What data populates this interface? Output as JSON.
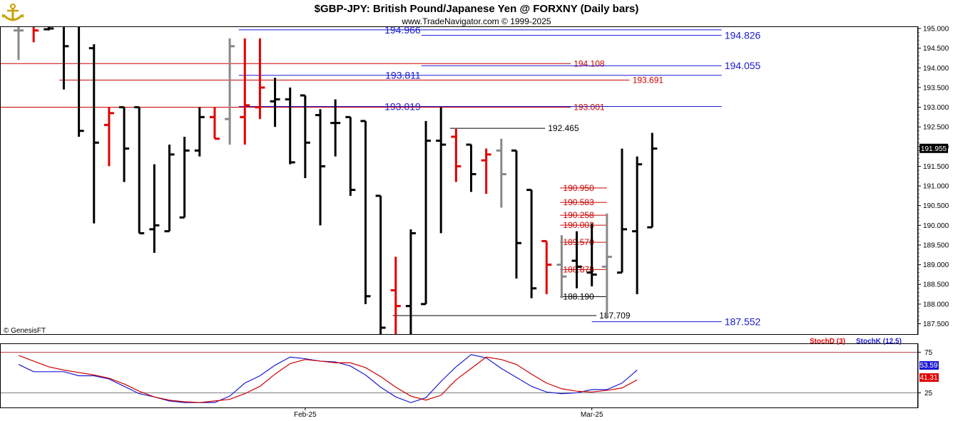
{
  "header": {
    "title": "$GBP-JPY:  British Pound/Japanese Yen @ FORXNY  (Daily bars)",
    "subtitle": "www.TradeNavigator.com © 1999-2025"
  },
  "watermark": "© GenesisFT",
  "colors": {
    "up_bar": "#000000",
    "down_bar": "#e00000",
    "neutral_bar": "#888888",
    "blue_level": "#1a1ad0",
    "red_level": "#cc0000",
    "black_level": "#000000",
    "stoch_d": "#e00000",
    "stoch_k": "#1a1ad0",
    "price_badge": "#000000"
  },
  "chart_data": [
    {
      "type": "ohlc",
      "name": "price",
      "y_ticks": [
        "187.500",
        "188.000",
        "188.500",
        "189.000",
        "189.500",
        "190.000",
        "190.500",
        "191.000",
        "191.500",
        "192.000",
        "192.500",
        "193.000",
        "193.500",
        "194.000",
        "194.500",
        "195.000"
      ],
      "ylim": [
        187.2,
        195.1
      ],
      "x_labels": [
        {
          "label": "Feb-25",
          "index": 19
        },
        {
          "label": "Mar-25",
          "index": 38
        }
      ],
      "last_price": "191.955",
      "bars": [
        {
          "o": 194.95,
          "h": 195.45,
          "l": 194.2,
          "c": 194.95,
          "col": "n"
        },
        {
          "o": 195.2,
          "h": 195.45,
          "l": 194.65,
          "c": 194.95,
          "col": "d"
        },
        {
          "o": 194.98,
          "h": 195.35,
          "l": 194.95,
          "c": 195.0,
          "col": "u"
        },
        {
          "o": 195.2,
          "h": 195.4,
          "l": 193.45,
          "c": 194.55,
          "col": "u"
        },
        {
          "o": 195.2,
          "h": 195.4,
          "l": 192.25,
          "c": 192.4,
          "col": "u"
        },
        {
          "o": 194.5,
          "h": 194.6,
          "l": 190.05,
          "c": 192.1,
          "col": "u"
        },
        {
          "o": 192.55,
          "h": 193.0,
          "l": 191.5,
          "c": 192.85,
          "col": "d"
        },
        {
          "o": 193.0,
          "h": 193.0,
          "l": 191.1,
          "c": 191.95,
          "col": "u"
        },
        {
          "o": 193.0,
          "h": 193.0,
          "l": 189.8,
          "c": 189.8,
          "col": "u"
        },
        {
          "o": 189.9,
          "h": 191.55,
          "l": 189.3,
          "c": 190.0,
          "col": "u"
        },
        {
          "o": 189.85,
          "h": 192.05,
          "l": 189.85,
          "c": 191.8,
          "col": "u"
        },
        {
          "o": 190.2,
          "h": 192.25,
          "l": 190.2,
          "c": 191.9,
          "col": "u"
        },
        {
          "o": 191.9,
          "h": 193.0,
          "l": 191.75,
          "c": 192.75,
          "col": "u"
        },
        {
          "o": 192.75,
          "h": 193.0,
          "l": 192.2,
          "c": 192.2,
          "col": "d"
        },
        {
          "o": 192.7,
          "h": 194.75,
          "l": 192.05,
          "c": 194.55,
          "col": "n"
        },
        {
          "o": 192.75,
          "h": 194.75,
          "l": 192.05,
          "c": 193.05,
          "col": "d"
        },
        {
          "o": 193.0,
          "h": 194.75,
          "l": 192.7,
          "c": 193.5,
          "col": "d"
        },
        {
          "o": 193.15,
          "h": 193.75,
          "l": 192.5,
          "c": 193.2,
          "col": "u"
        },
        {
          "o": 193.2,
          "h": 193.5,
          "l": 191.55,
          "c": 191.6,
          "col": "u"
        },
        {
          "o": 193.3,
          "h": 193.3,
          "l": 191.2,
          "c": 192.1,
          "col": "u"
        },
        {
          "o": 192.8,
          "h": 192.95,
          "l": 190.0,
          "c": 191.5,
          "col": "u"
        },
        {
          "o": 192.6,
          "h": 193.2,
          "l": 191.75,
          "c": 192.6,
          "col": "u"
        },
        {
          "o": 192.75,
          "h": 192.75,
          "l": 190.75,
          "c": 190.9,
          "col": "u"
        },
        {
          "o": 192.65,
          "h": 192.65,
          "l": 188.0,
          "c": 188.2,
          "col": "u"
        },
        {
          "o": 190.75,
          "h": 190.75,
          "l": 187.2,
          "c": 187.4,
          "col": "u"
        },
        {
          "o": 188.35,
          "h": 189.2,
          "l": 187.2,
          "c": 187.95,
          "col": "d"
        },
        {
          "o": 187.95,
          "h": 189.9,
          "l": 187.2,
          "c": 189.8,
          "col": "u"
        },
        {
          "o": 188.0,
          "h": 192.65,
          "l": 188.0,
          "c": 192.15,
          "col": "u"
        },
        {
          "o": 192.15,
          "h": 193.0,
          "l": 189.8,
          "c": 192.05,
          "col": "u"
        },
        {
          "o": 192.25,
          "h": 192.45,
          "l": 191.1,
          "c": 191.5,
          "col": "d"
        },
        {
          "o": 192.05,
          "h": 192.05,
          "l": 190.85,
          "c": 191.3,
          "col": "u"
        },
        {
          "o": 191.65,
          "h": 191.95,
          "l": 190.8,
          "c": 191.8,
          "col": "d"
        },
        {
          "o": 191.9,
          "h": 192.2,
          "l": 190.45,
          "c": 191.3,
          "col": "n"
        },
        {
          "o": 191.9,
          "h": 191.9,
          "l": 188.65,
          "c": 189.55,
          "col": "u"
        },
        {
          "o": 190.9,
          "h": 190.9,
          "l": 188.15,
          "c": 188.4,
          "col": "u"
        },
        {
          "o": 189.6,
          "h": 189.6,
          "l": 188.25,
          "c": 189.0,
          "col": "d"
        },
        {
          "o": 189.0,
          "h": 189.75,
          "l": 188.15,
          "c": 188.7,
          "col": "n"
        },
        {
          "o": 189.1,
          "h": 189.85,
          "l": 188.4,
          "c": 188.95,
          "col": "u"
        },
        {
          "o": 188.8,
          "h": 190.05,
          "l": 188.45,
          "c": 188.75,
          "col": "u"
        },
        {
          "o": 188.95,
          "h": 190.3,
          "l": 187.65,
          "c": 189.2,
          "col": "n"
        },
        {
          "o": 188.8,
          "h": 191.95,
          "l": 188.8,
          "c": 189.9,
          "col": "u"
        },
        {
          "o": 189.85,
          "h": 191.75,
          "l": 188.25,
          "c": 191.55,
          "col": "u"
        },
        {
          "o": 189.95,
          "h": 192.35,
          "l": 189.95,
          "c": 191.95,
          "col": "u"
        }
      ],
      "levels": [
        {
          "value": "194.966",
          "color": "blue",
          "x0": 14.6,
          "x1": 46.6,
          "label_at": 26.7,
          "label_side": "left",
          "big": true
        },
        {
          "value": "194.826",
          "color": "blue",
          "x0": 26.7,
          "x1": 46.6,
          "label_at": 46.7,
          "label_side": "right",
          "big": true
        },
        {
          "value": "194.108",
          "color": "red",
          "x0": -1.4,
          "x1": 36.6,
          "label_at": 36.7,
          "label_side": "right",
          "big": false
        },
        {
          "value": "194.055",
          "color": "blue",
          "x0": 26.7,
          "x1": 46.6,
          "label_at": 46.7,
          "label_side": "right",
          "big": true
        },
        {
          "value": "193.811",
          "color": "blue",
          "x0": 14.6,
          "x1": 46.6,
          "label_at": 26.7,
          "label_side": "left",
          "big": true
        },
        {
          "value": "193.691",
          "color": "red",
          "x0": 2.7,
          "x1": 40.5,
          "label_at": 40.6,
          "label_side": "right",
          "big": false
        },
        {
          "value": "193.019",
          "color": "blue",
          "x0": 14.6,
          "x1": 46.6,
          "label_at": 26.7,
          "label_side": "left",
          "big": true
        },
        {
          "value": "193.001",
          "color": "red",
          "x0": -1.4,
          "x1": 36.6,
          "label_at": 36.7,
          "label_side": "right",
          "big": false
        },
        {
          "value": "192.465",
          "color": "black",
          "x0": 28.6,
          "x1": 34.9,
          "label_at": 35.0,
          "label_side": "right",
          "big": false
        },
        {
          "value": "190.950",
          "color": "red",
          "x0": 39.0,
          "x1": 35.9,
          "label_at": 36.0,
          "label_side": "right",
          "big": false
        },
        {
          "value": "190.583",
          "color": "red",
          "x0": 39.0,
          "x1": 35.9,
          "label_at": 36.0,
          "label_side": "right",
          "big": false
        },
        {
          "value": "190.258",
          "color": "red",
          "x0": 39.0,
          "x1": 35.9,
          "label_at": 36.0,
          "label_side": "right",
          "big": false
        },
        {
          "value": "190.003",
          "color": "red",
          "x0": 39.0,
          "x1": 35.9,
          "label_at": 36.0,
          "label_side": "right",
          "big": false
        },
        {
          "value": "189.570",
          "color": "red",
          "x0": 39.0,
          "x1": 35.9,
          "label_at": 36.0,
          "label_side": "right",
          "big": false
        },
        {
          "value": "188.878",
          "color": "red",
          "x0": 39.0,
          "x1": 35.9,
          "label_at": 36.0,
          "label_side": "right",
          "big": false
        },
        {
          "value": "188.190",
          "color": "black",
          "x0": 39.0,
          "x1": 35.9,
          "label_at": 36.0,
          "label_side": "right",
          "big": false
        },
        {
          "value": "187.709",
          "color": "black",
          "x0": 24.8,
          "x1": 38.3,
          "label_at": 38.4,
          "label_side": "right",
          "big": false
        },
        {
          "value": "187.552",
          "color": "blue",
          "x0": 38.0,
          "x1": 46.6,
          "label_at": 46.7,
          "label_side": "right",
          "big": true
        }
      ]
    },
    {
      "type": "line",
      "name": "stochastic",
      "y_ticks": [
        "25",
        "75"
      ],
      "ylim": [
        7,
        85
      ],
      "reference_lines": [
        25,
        75
      ],
      "legend": [
        {
          "label": "StochD (3)",
          "color": "red"
        },
        {
          "label": "StochK (12,5)",
          "color": "blue"
        }
      ],
      "last_values": {
        "k": "53.59",
        "d": "41.31"
      },
      "series": [
        {
          "name": "StochK (12,5)",
          "color": "blue",
          "values": [
            60,
            51,
            51,
            51,
            46,
            46,
            42,
            33,
            24,
            20,
            15,
            13,
            13,
            13,
            21,
            37,
            46,
            59,
            69,
            67,
            64,
            63,
            58,
            47,
            32,
            20,
            13,
            19,
            39,
            57,
            72,
            68,
            55,
            44,
            33,
            26,
            24,
            25,
            29,
            29,
            37,
            53
          ]
        },
        {
          "name": "StochD (3)",
          "color": "red",
          "values": [
            71,
            64,
            57,
            53,
            50,
            47,
            43,
            36,
            27,
            20,
            16,
            14,
            13,
            15,
            17,
            24,
            33,
            48,
            61,
            66,
            64,
            62,
            62,
            56,
            45,
            32,
            21,
            16,
            22,
            41,
            55,
            69,
            66,
            60,
            48,
            37,
            30,
            27,
            26,
            28,
            31,
            41
          ]
        }
      ]
    }
  ]
}
